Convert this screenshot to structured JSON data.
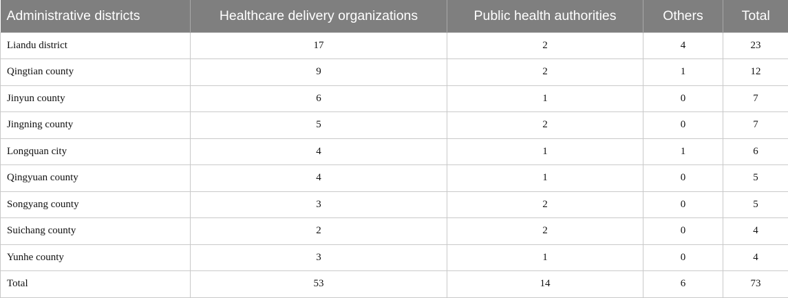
{
  "table": {
    "headers": [
      "Administrative districts",
      "Healthcare delivery organizations",
      "Public health authorities",
      "Others",
      "Total"
    ],
    "rows": [
      [
        "Liandu district",
        "17",
        "2",
        "4",
        "23"
      ],
      [
        "Qingtian county",
        "9",
        "2",
        "1",
        "12"
      ],
      [
        "Jinyun county",
        "6",
        "1",
        "0",
        "7"
      ],
      [
        "Jingning county",
        "5",
        "2",
        "0",
        "7"
      ],
      [
        "Longquan city",
        "4",
        "1",
        "1",
        "6"
      ],
      [
        "Qingyuan county",
        "4",
        "1",
        "0",
        "5"
      ],
      [
        "Songyang county",
        "3",
        "2",
        "0",
        "5"
      ],
      [
        "Suichang county",
        "2",
        "2",
        "0",
        "4"
      ],
      [
        "Yunhe county",
        "3",
        "1",
        "0",
        "4"
      ],
      [
        "Total",
        "53",
        "14",
        "6",
        "73"
      ]
    ]
  }
}
